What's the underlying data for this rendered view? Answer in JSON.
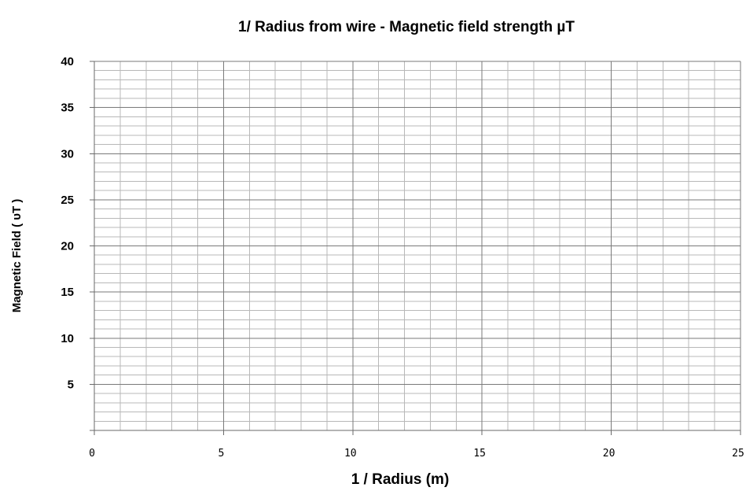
{
  "chart_data": {
    "type": "scatter",
    "title": "1/ Radius from wire - Magnetic field strength µT",
    "xlabel": "1 / Radius (m)",
    "ylabel": "Magnetic Field ( υT )",
    "xlim": [
      0,
      25
    ],
    "ylim": [
      0,
      40
    ],
    "x_ticks": [
      0,
      5,
      10,
      15,
      20,
      25
    ],
    "y_ticks": [
      5,
      10,
      15,
      20,
      25,
      30,
      35,
      40
    ],
    "x_minor_step": 1,
    "y_minor_step": 1,
    "series": [],
    "grid": true,
    "legend": "none"
  }
}
